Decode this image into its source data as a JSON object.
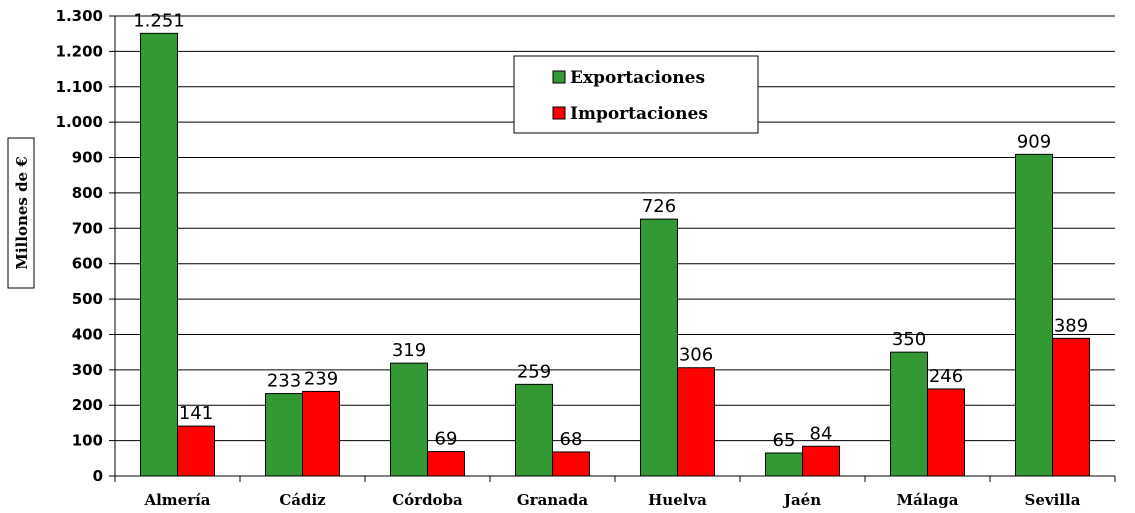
{
  "chart_data": {
    "type": "bar",
    "title": "",
    "ylabel": "Millones de €",
    "xlabel": "",
    "categories": [
      "Almería",
      "Cádiz",
      "Córdoba",
      "Granada",
      "Huelva",
      "Jaén",
      "Málaga",
      "Sevilla"
    ],
    "series": [
      {
        "name": "Exportaciones",
        "color": "#339933",
        "values": [
          1251,
          233,
          319,
          259,
          726,
          65,
          350,
          909
        ],
        "labels": [
          "1.251",
          "233",
          "319",
          "259",
          "726",
          "65",
          "350",
          "909"
        ]
      },
      {
        "name": "Importaciones",
        "color": "#ff0000",
        "values": [
          141,
          239,
          69,
          68,
          306,
          84,
          246,
          389
        ],
        "labels": [
          "141",
          "239",
          "69",
          "68",
          "306",
          "84",
          "246",
          "389"
        ]
      }
    ],
    "ylim": [
      0,
      1300
    ],
    "yticks": [
      0,
      100,
      200,
      300,
      400,
      500,
      600,
      700,
      800,
      900,
      1000,
      1100,
      1200,
      1300
    ],
    "ytick_labels": [
      "0",
      "100",
      "200",
      "300",
      "400",
      "500",
      "600",
      "700",
      "800",
      "900",
      "1.000",
      "1.100",
      "1.200",
      "1.300"
    ],
    "grid": true,
    "legend_position": "top-center"
  }
}
